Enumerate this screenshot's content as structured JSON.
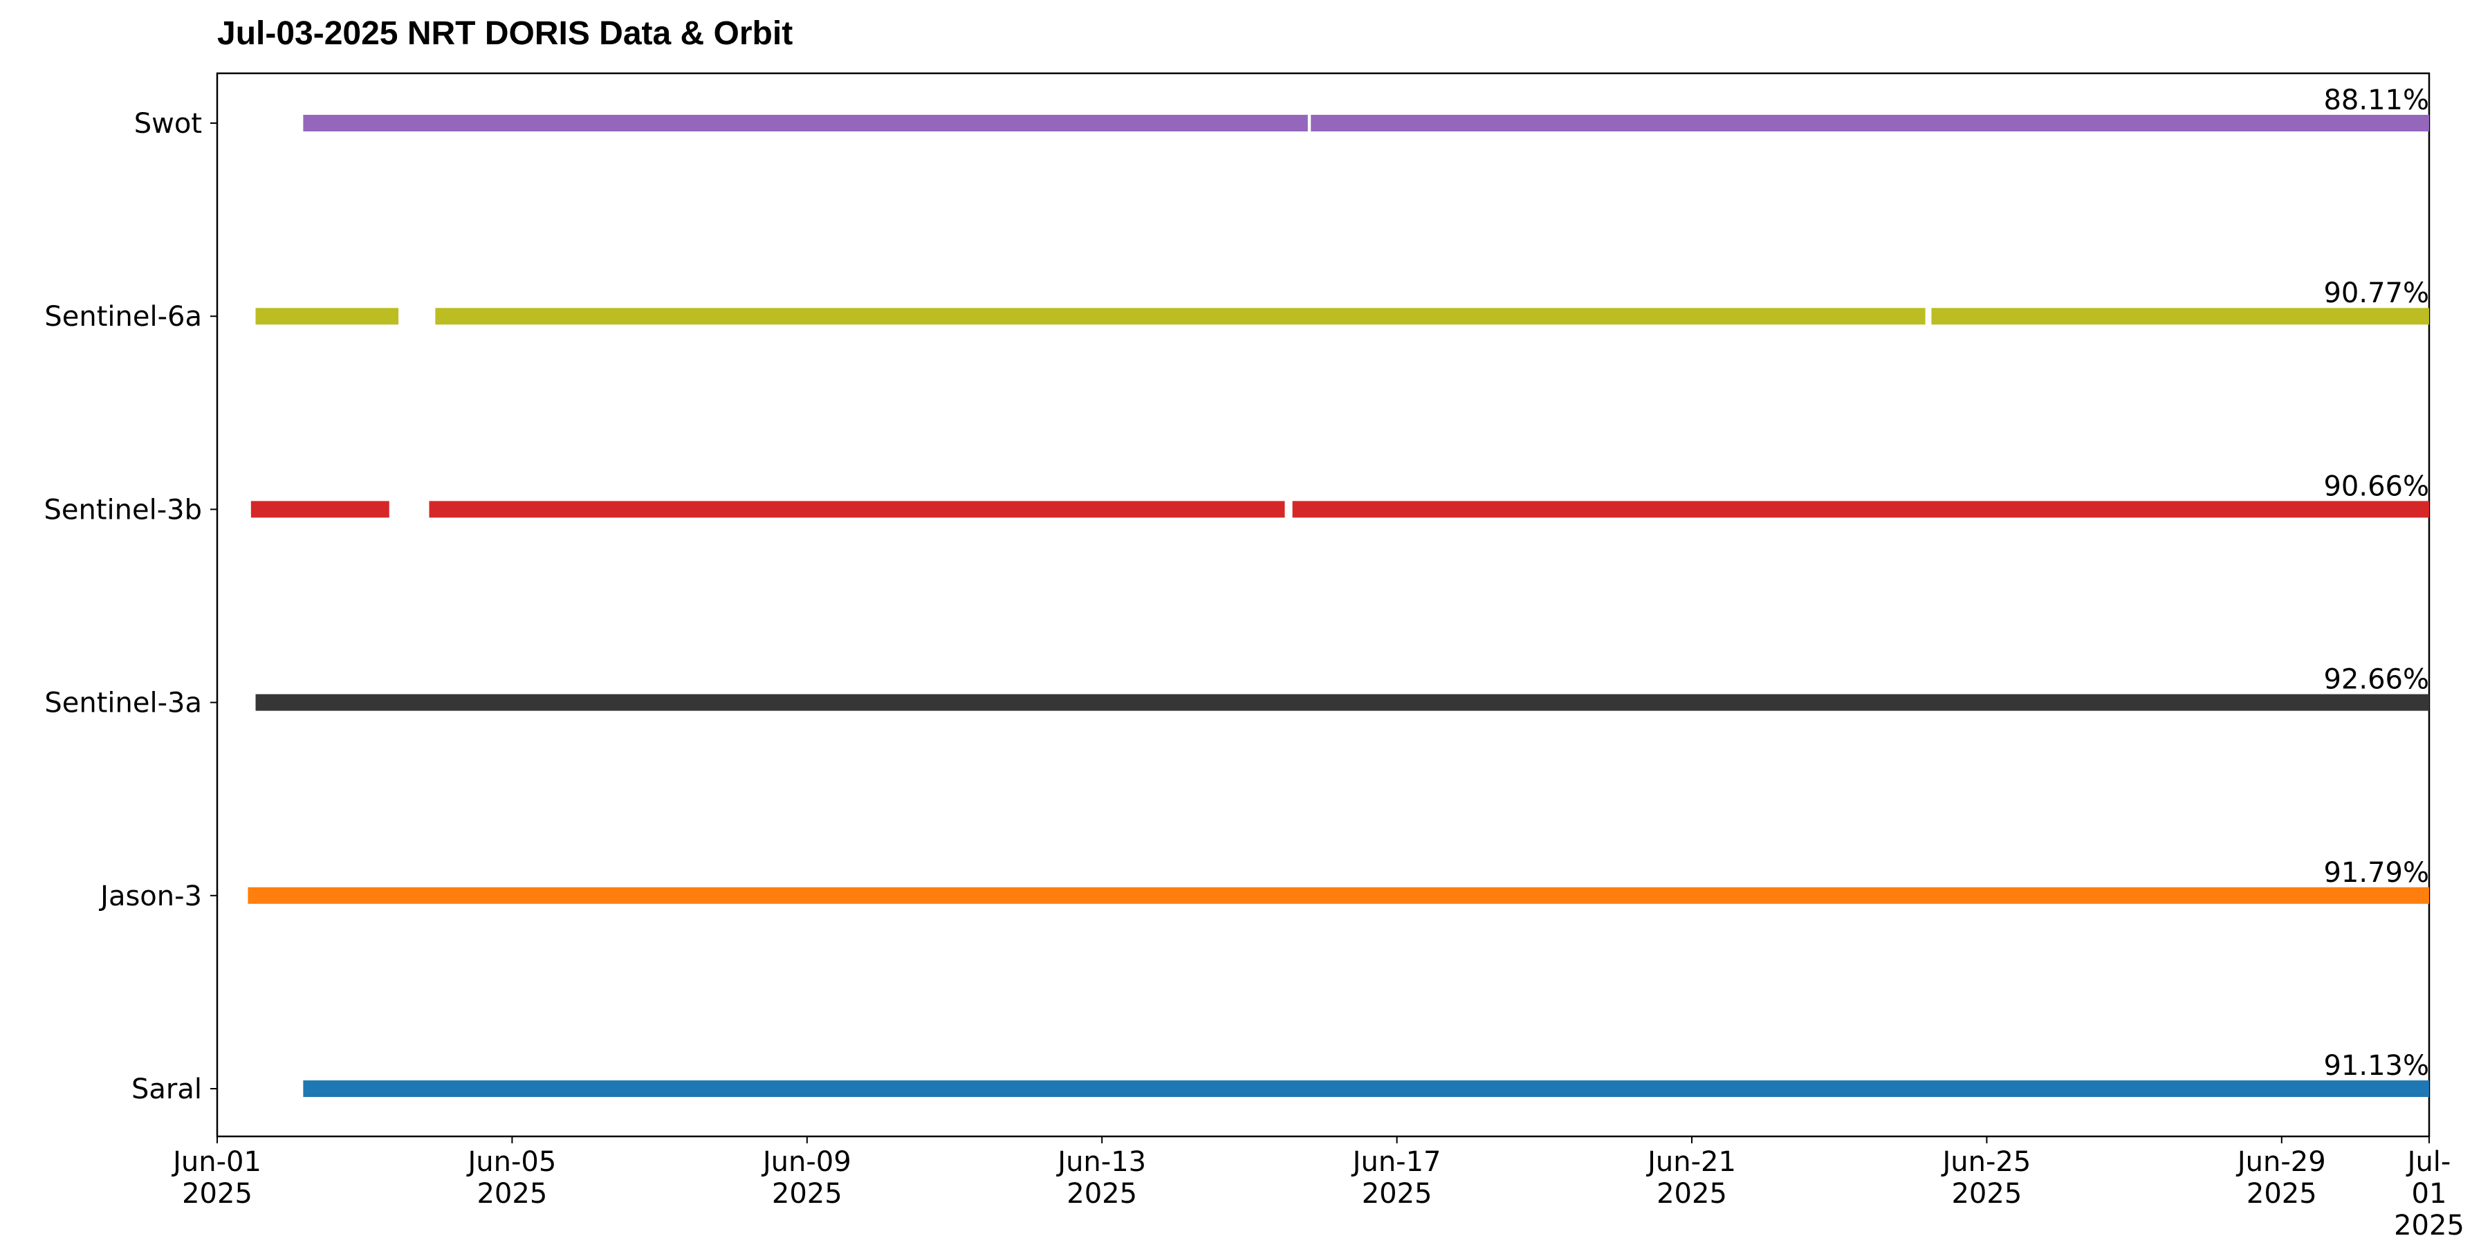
{
  "chart_data": {
    "type": "timeline",
    "title": "Jul-03-2025 NRT DORIS Data & Orbit",
    "xlim": [
      "2025-06-01",
      "2025-07-01"
    ],
    "xticks": [
      {
        "value": "2025-06-01",
        "label": "Jun-01\n2025"
      },
      {
        "value": "2025-06-05",
        "label": "Jun-05\n2025"
      },
      {
        "value": "2025-06-09",
        "label": "Jun-09\n2025"
      },
      {
        "value": "2025-06-13",
        "label": "Jun-13\n2025"
      },
      {
        "value": "2025-06-17",
        "label": "Jun-17\n2025"
      },
      {
        "value": "2025-06-21",
        "label": "Jun-21\n2025"
      },
      {
        "value": "2025-06-25",
        "label": "Jun-25\n2025"
      },
      {
        "value": "2025-06-29",
        "label": "Jun-29\n2025"
      },
      {
        "value": "2025-07-01",
        "label": "Jul-01\n2025"
      }
    ],
    "series": [
      {
        "name": "Saral",
        "color": "#1f77b4",
        "values": [
          91.13
        ],
        "value_labels": [
          "91.13%"
        ],
        "segments": [
          [
            "2025-06-02T04:00",
            "2025-07-01T00:00"
          ]
        ]
      },
      {
        "name": "Jason-3",
        "color": "#ff7f0e",
        "values": [
          91.79
        ],
        "value_labels": [
          "91.79%"
        ],
        "segments": [
          [
            "2025-06-01T10:00",
            "2025-07-01T00:00"
          ]
        ]
      },
      {
        "name": "Sentinel-3a",
        "color": "#363636",
        "values": [
          92.66
        ],
        "value_labels": [
          "92.66%"
        ],
        "segments": [
          [
            "2025-06-01T12:30",
            "2025-07-01T00:00"
          ]
        ]
      },
      {
        "name": "Sentinel-3b",
        "color": "#d62728",
        "values": [
          90.66
        ],
        "value_labels": [
          "90.66%"
        ],
        "segments": [
          [
            "2025-06-01T11:00",
            "2025-06-03T08:00"
          ],
          [
            "2025-06-03T21:00",
            "2025-06-15T11:30"
          ],
          [
            "2025-06-15T14:00",
            "2025-07-01T00:00"
          ]
        ]
      },
      {
        "name": "Sentinel-6a",
        "color": "#bcbd22",
        "values": [
          90.77
        ],
        "value_labels": [
          "90.77%"
        ],
        "segments": [
          [
            "2025-06-01T12:30",
            "2025-06-03T11:00"
          ],
          [
            "2025-06-03T23:00",
            "2025-06-24T04:00"
          ],
          [
            "2025-06-24T06:00",
            "2025-07-01T00:00"
          ]
        ]
      },
      {
        "name": "Swot",
        "color": "#9467bd",
        "values": [
          88.11
        ],
        "value_labels": [
          "88.11%"
        ],
        "segments": [
          [
            "2025-06-02T04:00",
            "2025-06-15T19:00"
          ],
          [
            "2025-06-15T20:00",
            "2025-07-01T00:00"
          ]
        ]
      }
    ]
  }
}
